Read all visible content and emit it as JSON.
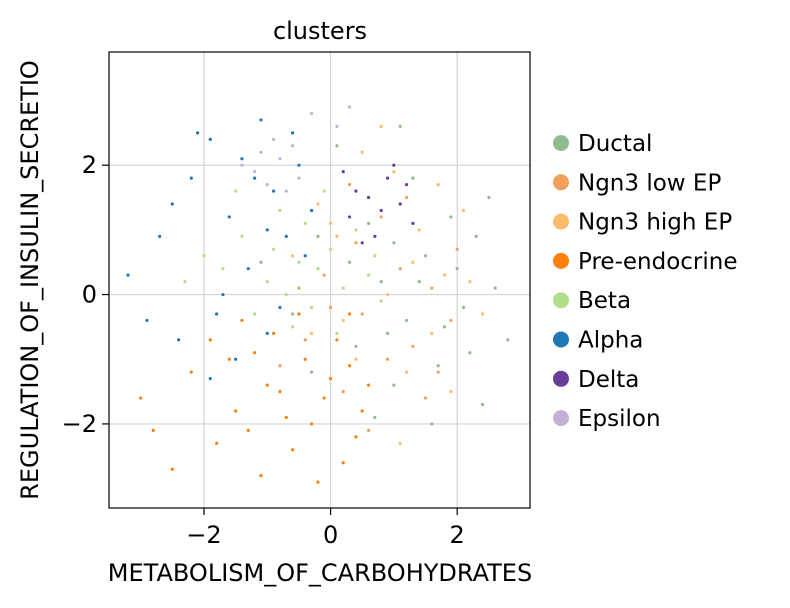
{
  "chart_data": {
    "type": "scatter",
    "title": "clusters",
    "xlabel": "METABOLISM_OF_CARBOHYDRATES",
    "ylabel": "REGULATION_OF_INSULIN_SECRETIO",
    "xlim": [
      -3.5,
      3.15
    ],
    "ylim": [
      -3.3,
      3.75
    ],
    "xticks": [
      -2,
      0,
      2
    ],
    "xtick_labels": [
      "−2",
      "0",
      "2"
    ],
    "yticks": [
      -2,
      0,
      2
    ],
    "ytick_labels": [
      "−2",
      "0",
      "2"
    ],
    "grid": true,
    "legend_position": "right",
    "series": [
      {
        "name": "Ductal",
        "color": "#8fbc8f",
        "points": [
          [
            0.8,
            0.2
          ],
          [
            1.2,
            -0.4
          ],
          [
            1.5,
            0.6
          ],
          [
            2.2,
            -0.9
          ],
          [
            0.4,
            -0.8
          ],
          [
            1.9,
            1.2
          ],
          [
            2.6,
            0.1
          ],
          [
            1.0,
            -1.4
          ],
          [
            -0.2,
            0.9
          ],
          [
            2.4,
            -1.7
          ],
          [
            1.7,
            -1.1
          ],
          [
            0.1,
            2.3
          ],
          [
            2.8,
            -0.7
          ],
          [
            1.3,
            1.8
          ],
          [
            -0.6,
            -0.3
          ],
          [
            2.0,
            0.4
          ],
          [
            0.6,
            1.1
          ],
          [
            1.6,
            -2.0
          ],
          [
            2.3,
            0.9
          ],
          [
            0.9,
            -0.6
          ],
          [
            -1.1,
            0.5
          ],
          [
            1.4,
            0.2
          ],
          [
            1.1,
            2.6
          ],
          [
            2.1,
            -0.2
          ],
          [
            0.3,
            0.5
          ],
          [
            1.8,
            -0.5
          ],
          [
            -0.3,
            -1.2
          ],
          [
            0.7,
            -1.9
          ],
          [
            2.5,
            1.5
          ],
          [
            1.0,
            0.8
          ]
        ]
      },
      {
        "name": "Ngn3 low EP",
        "color": "#f0a05a",
        "points": [
          [
            0.5,
            -0.3
          ],
          [
            1.1,
            0.4
          ],
          [
            -0.4,
            -0.7
          ],
          [
            0.9,
            -1.0
          ],
          [
            1.6,
            0.1
          ],
          [
            0.2,
            -1.5
          ],
          [
            1.3,
            -0.8
          ],
          [
            -0.1,
            0.3
          ],
          [
            0.8,
            1.2
          ],
          [
            1.9,
            -0.4
          ],
          [
            0.4,
            0.8
          ],
          [
            -0.8,
            -1.1
          ],
          [
            1.5,
            -1.6
          ],
          [
            0.0,
            -0.2
          ],
          [
            2.0,
            0.7
          ],
          [
            0.6,
            -2.1
          ],
          [
            1.2,
            1.5
          ],
          [
            -0.5,
            0.1
          ],
          [
            1.7,
            -1.2
          ],
          [
            0.3,
            1.7
          ]
        ]
      },
      {
        "name": "Ngn3 high EP",
        "color": "#fbbc6b",
        "points": [
          [
            0.7,
            0.6
          ],
          [
            1.4,
            1.0
          ],
          [
            0.2,
            -0.4
          ],
          [
            1.0,
            1.9
          ],
          [
            1.8,
            0.3
          ],
          [
            -0.2,
            1.4
          ],
          [
            0.5,
            2.2
          ],
          [
            1.6,
            -0.6
          ],
          [
            0.9,
            0.0
          ],
          [
            2.1,
            1.3
          ],
          [
            0.1,
            0.9
          ],
          [
            1.2,
            -1.2
          ],
          [
            -0.6,
            0.6
          ],
          [
            1.7,
            1.7
          ],
          [
            0.4,
            -1.0
          ],
          [
            2.4,
            -0.3
          ],
          [
            0.8,
            2.6
          ],
          [
            1.3,
            0.5
          ],
          [
            -0.3,
            -0.6
          ],
          [
            1.9,
            -1.5
          ],
          [
            0.6,
            1.5
          ],
          [
            2.2,
            0.2
          ],
          [
            1.1,
            -2.3
          ],
          [
            0.0,
            1.1
          ]
        ]
      },
      {
        "name": "Pre-endocrine",
        "color": "#ff7f0e",
        "points": [
          [
            -0.8,
            -1.5
          ],
          [
            -0.3,
            -2.0
          ],
          [
            -1.2,
            -0.9
          ],
          [
            0.0,
            -1.3
          ],
          [
            -0.6,
            -2.4
          ],
          [
            0.3,
            -1.1
          ],
          [
            -1.5,
            -1.8
          ],
          [
            -0.9,
            -0.6
          ],
          [
            0.2,
            -2.6
          ],
          [
            -1.8,
            -2.3
          ],
          [
            -0.4,
            -1.0
          ],
          [
            0.5,
            -1.8
          ],
          [
            -1.1,
            -2.8
          ],
          [
            -2.2,
            -1.2
          ],
          [
            0.1,
            -0.7
          ],
          [
            -0.7,
            -1.9
          ],
          [
            -1.4,
            -0.4
          ],
          [
            0.4,
            -2.2
          ],
          [
            -2.8,
            -2.1
          ],
          [
            -1.0,
            -1.4
          ],
          [
            0.6,
            -1.4
          ],
          [
            -0.2,
            -2.9
          ],
          [
            -2.5,
            -2.7
          ],
          [
            -1.6,
            -1.0
          ],
          [
            -0.5,
            -0.3
          ],
          [
            0.3,
            -0.3
          ],
          [
            -1.3,
            -2.1
          ],
          [
            -3.0,
            -1.6
          ],
          [
            -0.1,
            -1.6
          ],
          [
            -1.9,
            -0.7
          ]
        ]
      },
      {
        "name": "Beta",
        "color": "#b3de88",
        "points": [
          [
            -0.5,
            0.5
          ],
          [
            -1.0,
            0.2
          ],
          [
            0.0,
            0.7
          ],
          [
            -0.3,
            -0.2
          ],
          [
            -1.4,
            0.9
          ],
          [
            -0.8,
            1.3
          ],
          [
            0.2,
            0.1
          ],
          [
            -1.7,
            0.4
          ],
          [
            -0.6,
            -0.5
          ],
          [
            0.4,
            1.0
          ],
          [
            -1.2,
            -0.3
          ],
          [
            -0.1,
            1.6
          ],
          [
            -2.0,
            0.6
          ],
          [
            0.6,
            0.3
          ],
          [
            -0.9,
            0.7
          ],
          [
            -0.4,
            1.1
          ],
          [
            0.1,
            -0.6
          ],
          [
            -1.5,
            1.6
          ],
          [
            -0.7,
            0.0
          ],
          [
            0.8,
            -0.1
          ],
          [
            -2.3,
            0.2
          ],
          [
            -0.2,
            0.4
          ]
        ]
      },
      {
        "name": "Alpha",
        "color": "#1f77b4",
        "points": [
          [
            -1.4,
            2.1
          ],
          [
            -0.9,
            1.6
          ],
          [
            -1.9,
            2.4
          ],
          [
            -0.5,
            2.0
          ],
          [
            -1.6,
            1.2
          ],
          [
            -2.2,
            1.8
          ],
          [
            -1.1,
            2.7
          ],
          [
            -0.7,
            0.9
          ],
          [
            -2.5,
            1.4
          ],
          [
            -1.3,
            0.4
          ],
          [
            -1.8,
            -0.3
          ],
          [
            -0.3,
            1.3
          ],
          [
            -2.1,
            2.5
          ],
          [
            -1.0,
            -0.6
          ],
          [
            -2.7,
            0.9
          ],
          [
            -1.5,
            -1.0
          ],
          [
            -0.6,
            2.5
          ],
          [
            -2.9,
            -0.4
          ],
          [
            -1.2,
            1.8
          ],
          [
            -3.2,
            0.3
          ],
          [
            -0.8,
            -0.2
          ],
          [
            -1.7,
            0.0
          ],
          [
            -2.4,
            -0.7
          ],
          [
            -0.4,
            0.6
          ],
          [
            -1.9,
            -1.3
          ],
          [
            -1.0,
            1.0
          ]
        ]
      },
      {
        "name": "Delta",
        "color": "#6a3d9a",
        "points": [
          [
            0.6,
            1.5
          ],
          [
            0.9,
            1.8
          ],
          [
            0.3,
            1.2
          ],
          [
            1.1,
            1.4
          ],
          [
            0.7,
            0.9
          ],
          [
            0.2,
            1.9
          ],
          [
            1.3,
            1.1
          ],
          [
            0.5,
            0.8
          ],
          [
            1.0,
            2.0
          ],
          [
            0.4,
            1.6
          ],
          [
            0.8,
            1.3
          ],
          [
            1.2,
            1.7
          ]
        ]
      },
      {
        "name": "Epsilon",
        "color": "#c5b0d5",
        "points": [
          [
            -1.2,
            1.9
          ],
          [
            -0.8,
            2.1
          ],
          [
            -1.0,
            1.7
          ],
          [
            -0.5,
            1.8
          ],
          [
            -0.9,
            2.4
          ],
          [
            -1.4,
            2.0
          ],
          [
            -0.6,
            2.3
          ],
          [
            -0.3,
            2.8
          ],
          [
            0.3,
            2.9
          ],
          [
            -0.7,
            1.6
          ],
          [
            -1.1,
            2.2
          ],
          [
            0.1,
            2.6
          ]
        ]
      }
    ]
  }
}
